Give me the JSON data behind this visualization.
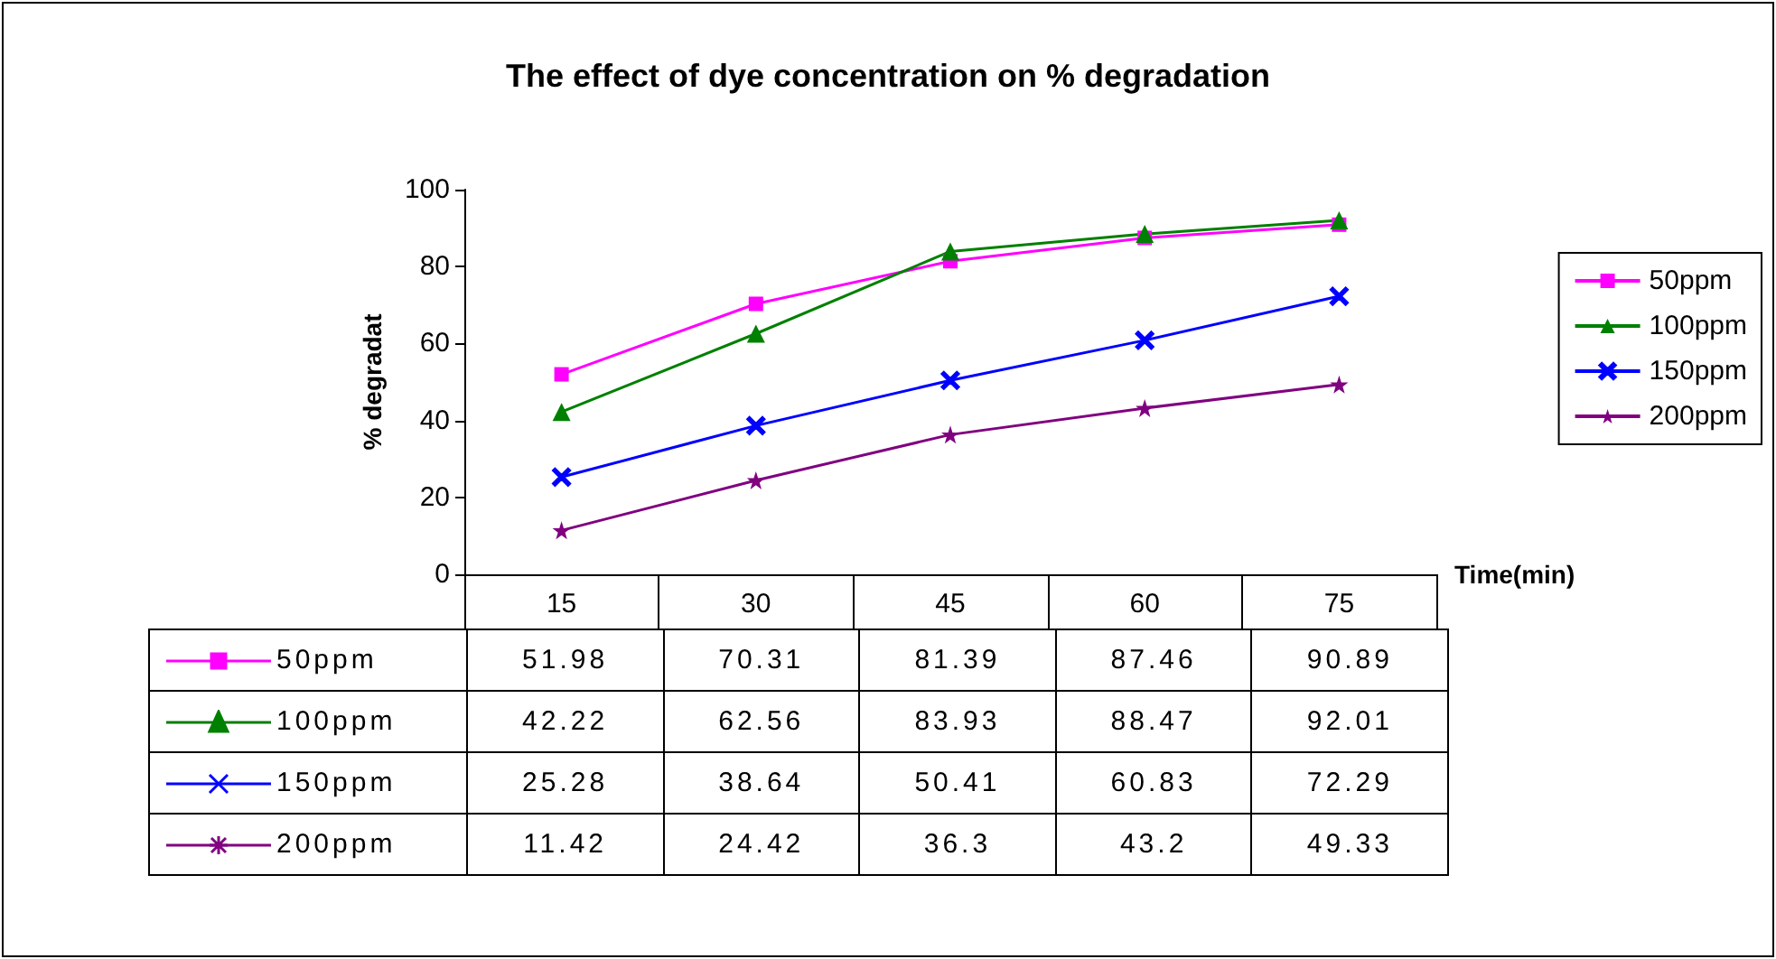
{
  "chart_data": {
    "type": "line",
    "title": "The effect of dye concentration on % degradation",
    "xlabel": "Time(min)",
    "ylabel": "% degradat",
    "categories": [
      "15",
      "30",
      "45",
      "60",
      "75"
    ],
    "series": [
      {
        "name": "50ppm",
        "color": "#ff00ff",
        "marker": "square",
        "values": [
          51.98,
          70.31,
          81.39,
          87.46,
          90.89
        ]
      },
      {
        "name": "100ppm",
        "color": "#008000",
        "marker": "triangle",
        "values": [
          42.22,
          62.56,
          83.93,
          88.47,
          92.01
        ]
      },
      {
        "name": "150ppm",
        "color": "#0000ff",
        "marker": "cross",
        "values": [
          25.28,
          38.64,
          50.41,
          60.83,
          72.29
        ]
      },
      {
        "name": "200ppm",
        "color": "#800080",
        "marker": "star",
        "values": [
          11.42,
          24.42,
          36.3,
          43.2,
          49.33
        ]
      }
    ],
    "ylim": [
      0,
      100
    ],
    "yticks": [
      0,
      20,
      40,
      60,
      80,
      100
    ],
    "grid": false,
    "legend": "right",
    "data_labels": true
  }
}
